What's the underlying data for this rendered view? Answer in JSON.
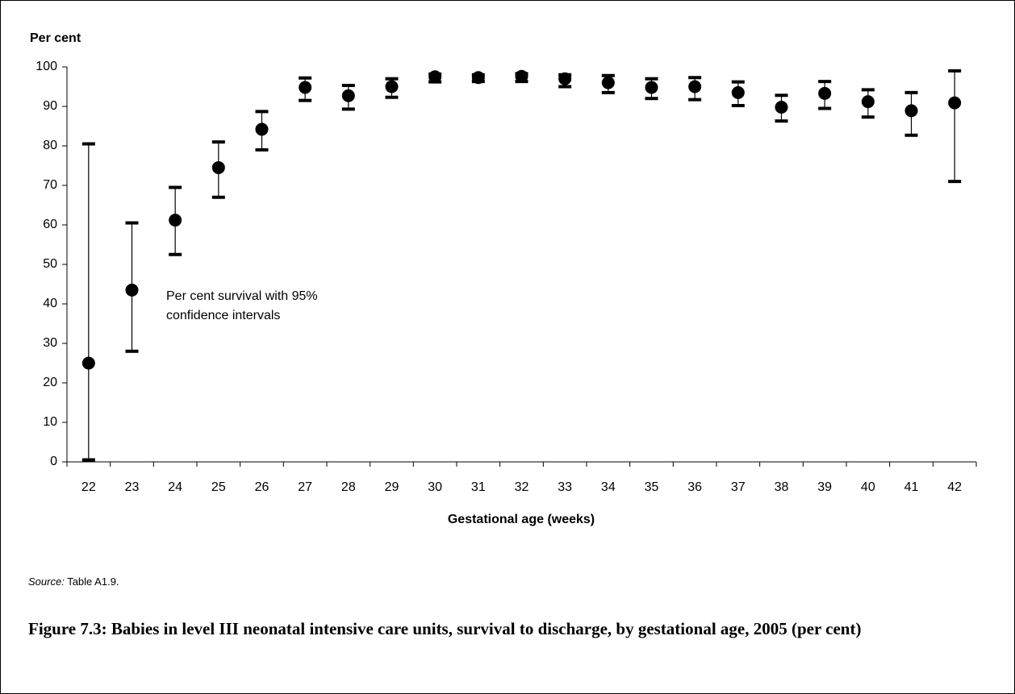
{
  "chart_data": {
    "type": "errorbar",
    "y_label": "Per cent",
    "x_label": "Gestational age (weeks)",
    "annotation": [
      "Per cent survival with 95%",
      "confidence intervals"
    ],
    "source_label": "Source:",
    "source": "Table A1.9.",
    "title": "Figure 7.3: Babies in level III neonatal intensive care units, survival to discharge, by gestational age, 2005 (per cent)",
    "categories": [
      "22",
      "23",
      "24",
      "25",
      "26",
      "27",
      "28",
      "29",
      "30",
      "31",
      "32",
      "33",
      "34",
      "35",
      "36",
      "37",
      "38",
      "39",
      "40",
      "41",
      "42"
    ],
    "series": [
      {
        "name": "Per cent survival",
        "color": "#000000",
        "values": [
          25,
          43.5,
          61.2,
          74.5,
          84.2,
          94.8,
          92.7,
          95,
          97.5,
          97.3,
          97.6,
          97,
          96,
          94.8,
          95,
          93.5,
          89.8,
          93.3,
          91.2,
          88.9,
          90.9
        ],
        "lower": [
          0.5,
          28,
          52.5,
          67,
          79,
          91.5,
          89.3,
          92.3,
          96.2,
          96.3,
          96.3,
          95,
          93.5,
          92,
          91.7,
          90.2,
          86.3,
          89.5,
          87.3,
          82.7,
          71
        ],
        "upper": [
          80.5,
          60.5,
          69.5,
          81,
          88.7,
          97.2,
          95.3,
          97,
          98.2,
          98,
          98.3,
          98,
          97.8,
          97,
          97.3,
          96.2,
          92.8,
          96.3,
          94.2,
          93.5,
          99
        ]
      }
    ],
    "ylim": [
      0,
      100
    ],
    "yticks": [
      0,
      10,
      20,
      30,
      40,
      50,
      60,
      70,
      80,
      90,
      100
    ],
    "grid": false
  }
}
